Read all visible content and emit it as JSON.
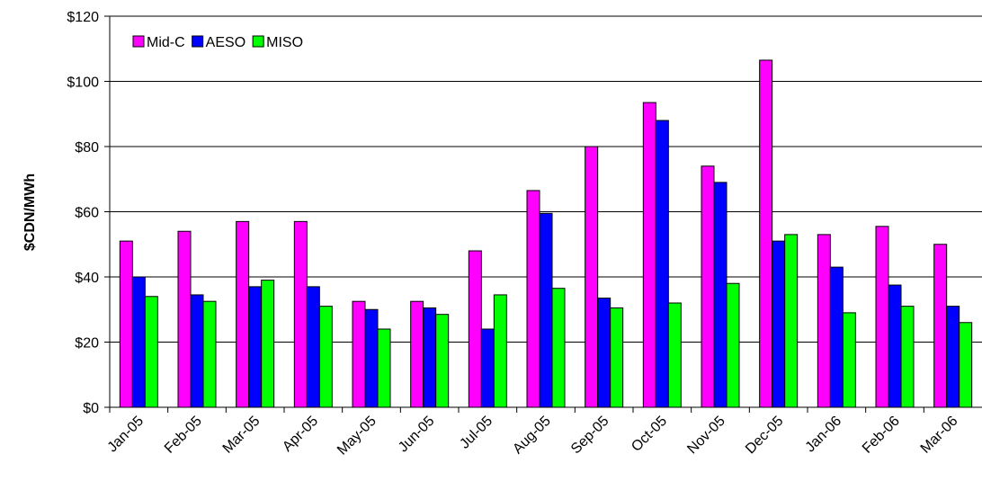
{
  "chart_data": {
    "type": "bar",
    "ylabel": "$CDN/MWh",
    "ylim": [
      0,
      120
    ],
    "y_ticks": [
      0,
      20,
      40,
      60,
      80,
      100,
      120
    ],
    "y_tick_labels": [
      "$0",
      "$20",
      "$40",
      "$60",
      "$80",
      "$100",
      "$120"
    ],
    "grid": true,
    "legend_position": "top-left",
    "categories": [
      "Jan-05",
      "Feb-05",
      "Mar-05",
      "Apr-05",
      "May-05",
      "Jun-05",
      "Jul-05",
      "Aug-05",
      "Sep-05",
      "Oct-05",
      "Nov-05",
      "Dec-05",
      "Jan-06",
      "Feb-06",
      "Mar-06"
    ],
    "series": [
      {
        "name": "Mid-C",
        "color": "#ff00ff",
        "values": [
          51,
          54,
          57,
          57,
          32.5,
          32.5,
          48,
          66.5,
          80,
          93.5,
          74,
          106.5,
          53,
          55.5,
          50
        ]
      },
      {
        "name": "AESO",
        "color": "#0000ff",
        "values": [
          40,
          34.5,
          37,
          37,
          30,
          30.5,
          24,
          59.5,
          33.5,
          88,
          69,
          51,
          43,
          37.5,
          31
        ]
      },
      {
        "name": "MISO",
        "color": "#00ff00",
        "values": [
          34,
          32.5,
          39,
          31,
          24,
          28.5,
          34.5,
          36.5,
          30.5,
          32,
          38,
          53,
          29,
          31,
          26
        ]
      }
    ]
  }
}
